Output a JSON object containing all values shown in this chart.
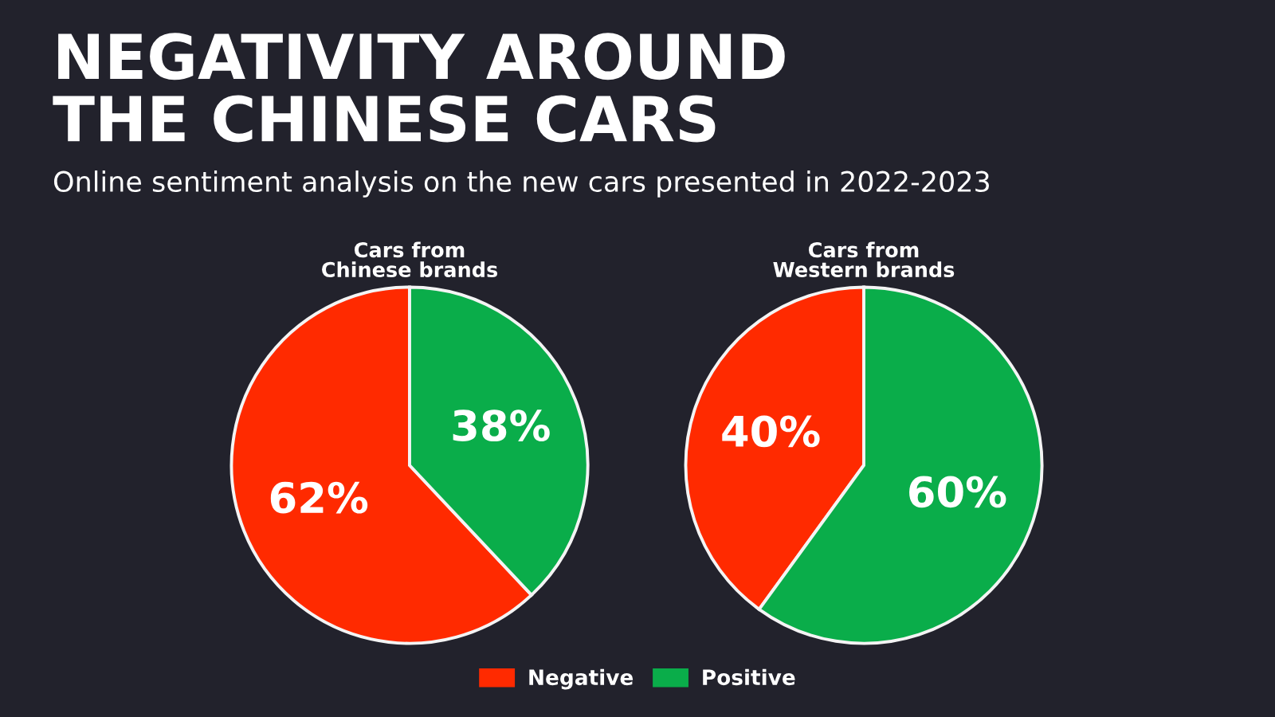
{
  "chart_data": [
    {
      "type": "pie",
      "title": "Cars from\nChinese brands",
      "annotations": [
        "NEGATIVITY AROUND\nTHE CHINESE CARS",
        "Online sentiment analysis on the new cars presented in 2022-2023"
      ],
      "categories": [
        "Negative",
        "Positive"
      ],
      "values": [
        62,
        38
      ],
      "value_labels": [
        "62%",
        "38%"
      ],
      "colors": [
        "#ff2a00",
        "#0aad4a"
      ],
      "legend": "bottom"
    },
    {
      "type": "pie",
      "title": "Cars from\nWestern brands",
      "categories": [
        null,
        null
      ],
      "values": [
        40,
        60
      ],
      "value_labels": [
        "40%",
        "60%"
      ],
      "colors": [
        "#ff2a00",
        "#0aad4a"
      ]
    }
  ]
}
